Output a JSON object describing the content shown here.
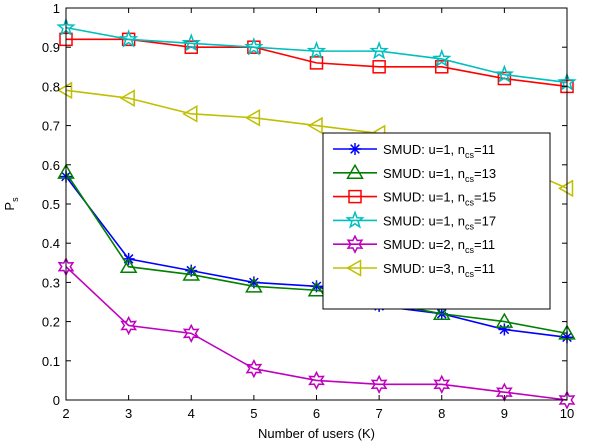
{
  "chart_data": {
    "type": "line",
    "xlabel": "Number of users (K)",
    "ylabel": "P",
    "ylabel_sub": "s",
    "xlim": [
      2,
      10
    ],
    "ylim": [
      0,
      1
    ],
    "x_ticks": [
      2,
      3,
      4,
      5,
      6,
      7,
      8,
      9,
      10
    ],
    "y_ticks": [
      0,
      0.1,
      0.2,
      0.3,
      0.4,
      0.5,
      0.6,
      0.7,
      0.8,
      0.9,
      1
    ],
    "y_tick_labels": [
      "0",
      "0.1",
      "0.2",
      "0.3",
      "0.4",
      "0.5",
      "0.6",
      "0.7",
      "0.8",
      "0.9",
      "1"
    ],
    "grid": false,
    "legend_position": "right",
    "x": [
      2,
      3,
      4,
      5,
      6,
      7,
      8,
      9,
      10
    ],
    "series": [
      {
        "name": "SMUD: u=1, n",
        "name_sub": "cs",
        "name_suffix": "=11",
        "color": "#0000ff",
        "marker": "asterisk",
        "values": [
          0.57,
          0.36,
          0.33,
          0.3,
          0.29,
          0.24,
          0.22,
          0.18,
          0.16
        ]
      },
      {
        "name": "SMUD: u=1, n",
        "name_sub": "cs",
        "name_suffix": "=13",
        "color": "#008000",
        "marker": "triangle-up",
        "values": [
          0.58,
          0.34,
          0.32,
          0.29,
          0.28,
          0.25,
          0.22,
          0.2,
          0.17
        ]
      },
      {
        "name": "SMUD: u=1, n",
        "name_sub": "cs",
        "name_suffix": "=15",
        "color": "#ff0000",
        "marker": "square",
        "values": [
          0.92,
          0.92,
          0.9,
          0.9,
          0.86,
          0.85,
          0.85,
          0.82,
          0.8
        ]
      },
      {
        "name": "SMUD: u=1, n",
        "name_sub": "cs",
        "name_suffix": "=17",
        "color": "#00bfbf",
        "marker": "pentagram",
        "values": [
          0.95,
          0.92,
          0.91,
          0.9,
          0.89,
          0.89,
          0.87,
          0.83,
          0.81
        ]
      },
      {
        "name": "SMUD: u=2, n",
        "name_sub": "cs",
        "name_suffix": "=11",
        "color": "#bf00bf",
        "marker": "hexagram",
        "values": [
          0.34,
          0.19,
          0.17,
          0.08,
          0.05,
          0.04,
          0.04,
          0.02,
          0.0
        ]
      },
      {
        "name": "SMUD: u=3, n",
        "name_sub": "cs",
        "name_suffix": "=11",
        "color": "#bfbf00",
        "marker": "triangle-left",
        "values": [
          0.79,
          0.77,
          0.73,
          0.72,
          0.7,
          0.68,
          0.65,
          0.61,
          0.54
        ]
      }
    ]
  }
}
